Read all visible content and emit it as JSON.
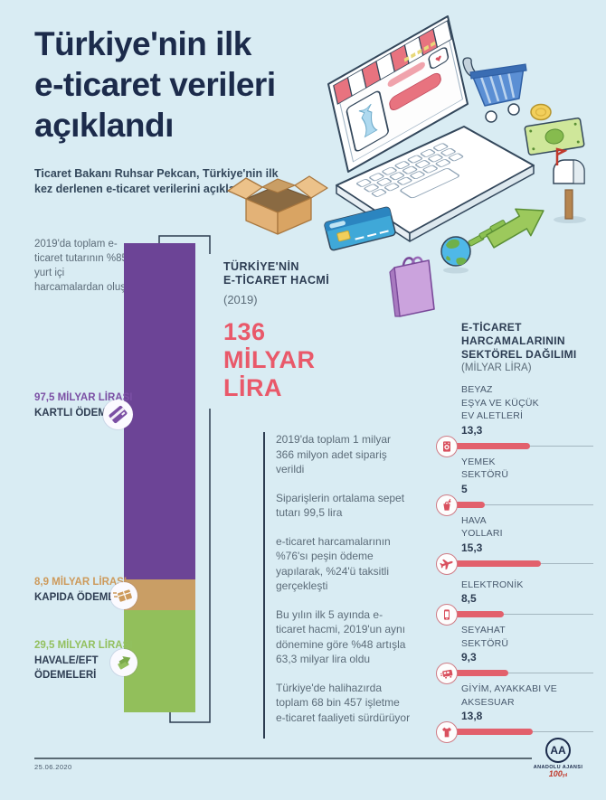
{
  "header": {
    "title_lines": [
      "Türkiye'nin ilk",
      "e-ticaret verileri",
      "açıklandı"
    ],
    "subtitle": "Ticaret Bakanı Ruhsar Pekcan, Türkiye'nin ilk kez derlenen e-ticaret verilerini açıkladı"
  },
  "payment": {
    "note": "2019'da toplam e-ticaret tutarının %85'i yurt içi harcamalardan oluştu",
    "total": 136,
    "segments": [
      {
        "amount": "97,5 MİLYAR LİRASI",
        "method": "KARTLI ÖDEME",
        "value": 97.5,
        "color": "#6c4496",
        "amount_color": "#7b4fa4",
        "icon": "credit-card-icon"
      },
      {
        "amount": "8,9 MİLYAR LİRASI",
        "method": "KAPIDA ÖDEME",
        "value": 8.9,
        "color": "#c99e65",
        "amount_color": "#cd9a5b",
        "icon": "package-icon"
      },
      {
        "amount": "29,5 MİLYAR LİRASI",
        "method": "HAVALE/EFT ÖDEMELERİ",
        "value": 29.5,
        "color": "#92bf5b",
        "amount_color": "#93c05f",
        "icon": "hand-money-icon"
      }
    ]
  },
  "volume": {
    "heading_lines": [
      "TÜRKİYE'NİN",
      "E-TİCARET HACMİ"
    ],
    "year": "(2019)",
    "amount": "136 MİLYAR LİRA"
  },
  "facts": [
    "2019'da toplam 1 milyar 366 milyon adet sipariş verildi",
    "Siparişlerin ortalama sepet tutarı 99,5 lira",
    "e-ticaret harcamalarının %76'sı peşin ödeme yapılarak, %24'ü taksitli gerçekleşti",
    "Bu yılın ilk 5 ayında e-ticaret hacmi, 2019'un aynı dönemine göre %48 artışla 63,3 milyar lira oldu",
    "Türkiye'de halihazırda toplam 68 bin 457 işletme e-ticaret faaliyeti sürdürüyor"
  ],
  "sectors": {
    "heading_lines": [
      "E-TİCARET",
      "HARCAMALARININ",
      "SEKTÖREL DAĞILIMI"
    ],
    "unit": "(MİLYAR LİRA)",
    "bar_color": "#e2606c",
    "items": [
      {
        "label_lines": [
          "BEYAZ",
          "EŞYA VE KÜÇÜK",
          "EV ALETLERİ"
        ],
        "value": "13,3",
        "value_num": 13.3,
        "icon": "washing-machine-icon"
      },
      {
        "label_lines": [
          "YEMEK",
          "SEKTÖRÜ"
        ],
        "value": "5",
        "value_num": 5,
        "icon": "food-icon"
      },
      {
        "label_lines": [
          "HAVA",
          "YOLLARI"
        ],
        "value": "15,3",
        "value_num": 15.3,
        "icon": "airplane-icon"
      },
      {
        "label_lines": [
          "ELEKTRONİK"
        ],
        "value": "8,5",
        "value_num": 8.5,
        "icon": "smartphone-icon"
      },
      {
        "label_lines": [
          "SEYAHAT",
          "SEKTÖRÜ"
        ],
        "value": "9,3",
        "value_num": 9.3,
        "icon": "bus-icon"
      },
      {
        "label_lines": [
          "GİYİM, AYAKKABI VE",
          "AKSESUAR"
        ],
        "value": "13,8",
        "value_num": 13.8,
        "icon": "tshirt-icon"
      }
    ]
  },
  "footer": {
    "date": "25.06.2020",
    "logo_text": "AA",
    "agency": "ANADOLU AJANSI",
    "anniversary": "100",
    "anniversary_suffix": "yıl"
  },
  "illustration": {
    "icons": [
      "laptop-online-store",
      "shopping-cart",
      "coin",
      "banknote",
      "mailbox",
      "cardboard-box",
      "credit-card",
      "shopping-bag",
      "globe",
      "growth-arrow"
    ]
  },
  "colors": {
    "background": "#d9ecf3",
    "navy": "#1c2b4b",
    "body_gray": "#5c6c79",
    "accent_red": "#e9596a",
    "purple": "#6c4496",
    "tan": "#c99e65",
    "green": "#92bf5b"
  },
  "chart_data": [
    {
      "type": "bar",
      "stacked": true,
      "title": "Türkiye'nin e-ticaret hacmi (2019)",
      "total_label": "136 milyar lira",
      "unit": "milyar lira",
      "categories": [
        "E-ticaret hacmi 2019"
      ],
      "series": [
        {
          "name": "Kartlı ödeme",
          "values": [
            97.5
          ]
        },
        {
          "name": "Kapıda ödeme",
          "values": [
            8.9
          ]
        },
        {
          "name": "Havale/EFT ödemeleri",
          "values": [
            29.5
          ]
        }
      ]
    },
    {
      "type": "bar",
      "orientation": "horizontal",
      "title": "E-ticaret harcamalarının sektörel dağılımı",
      "unit": "milyar lira",
      "categories": [
        "Beyaz eşya ve küçük ev aletleri",
        "Yemek sektörü",
        "Hava yolları",
        "Elektronik",
        "Seyahat sektörü",
        "Giyim, ayakkabı ve aksesuar"
      ],
      "values": [
        13.3,
        5,
        15.3,
        8.5,
        9.3,
        13.8
      ]
    }
  ]
}
